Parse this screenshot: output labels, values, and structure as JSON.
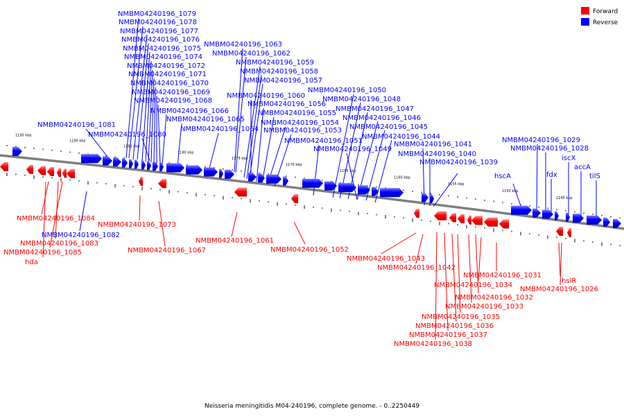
{
  "caption": "Neisseria meningitidis M04-240196, complete genome. - 0..2250449",
  "legend": {
    "items": [
      {
        "label": "Forward",
        "color": "#ff0000"
      },
      {
        "label": "Reverse",
        "color": "#0000ff"
      }
    ]
  },
  "colors": {
    "forward": "#ff0000",
    "forward_light": "#ff8a8a",
    "reverse": "#0000ff",
    "reverse_light": "#7b7bff",
    "backbone": "#7f7f7f"
  },
  "tick_labels": [
    "1195 kbp",
    "1190 kbp",
    "1185 kbp",
    "1180 kbp",
    "1175 kbp",
    "1170 kbp",
    "1165 kbp",
    "1160 kbp",
    "1155 kbp",
    "1150 kbp",
    "1145 kbp"
  ],
  "reverse_labels": [
    "NMBM04240196_1079",
    "NMBM04240196_1078",
    "NMBM04240196_1077",
    "NMBM04240196_1076",
    "NMBM04240196_1075",
    "NMBM04240196_1074",
    "NMBM04240196_1072",
    "NMBM04240196_1071",
    "NMBM04240196_1070",
    "NMBM04240196_1069",
    "NMBM04240196_1068",
    "NMBM04240196_1066",
    "NMBM04240196_1065",
    "NMBM04240196_1064",
    "NMBM04240196_1081",
    "NMBM04240196_1080",
    "NMBM04240196_1063",
    "NMBM04240196_1062",
    "NMBM04240196_1059",
    "NMBM04240196_1058",
    "NMBM04240196_1057",
    "NMBM04240196_1060",
    "NMBM04240196_1056",
    "NMBM04240196_1055",
    "NMBM04240196_1054",
    "NMBM04240196_1053",
    "NMBM04240196_1050",
    "NMBM04240196_1048",
    "NMBM04240196_1047",
    "NMBM04240196_1046",
    "NMBM04240196_1045",
    "NMBM04240196_1044",
    "NMBM04240196_1051",
    "NMBM04240196_1049",
    "NMBM04240196_1041",
    "NMBM04240196_1040",
    "NMBM04240196_1039",
    "NMBM04240196_1029",
    "NMBM04240196_1028",
    "iscX",
    "accA",
    "hscA",
    "fdx",
    "tilS",
    "NMBM04240196_1082"
  ],
  "forward_labels": [
    "NMBM04240196_1084",
    "NMBM04240196_1083",
    "NMBM04240196_1085",
    "hda",
    "NMBM04240196_1073",
    "NMBM04240196_1067",
    "NMBM04240196_1061",
    "NMBM04240196_1052",
    "NMBM04240196_1043",
    "NMBM04240196_1042",
    "NMBM04240196_1031",
    "NMBM04240196_1034",
    "NMBM04240196_1032",
    "NMBM04240196_1033",
    "NMBM04240196_1035",
    "NMBM04240196_1036",
    "NMBM04240196_1037",
    "NMBM04240196_1038",
    "hslR",
    "NMBM04240196_1026"
  ]
}
